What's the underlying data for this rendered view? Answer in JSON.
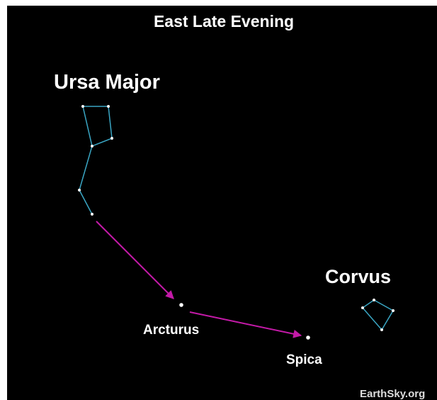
{
  "title": "East Late Evening",
  "constellations": [
    {
      "label": "Ursa Major"
    },
    {
      "label": "Corvus"
    }
  ],
  "stars": [
    {
      "label": "Arcturus"
    },
    {
      "label": "Spica"
    }
  ],
  "credit": "EarthSky.org"
}
